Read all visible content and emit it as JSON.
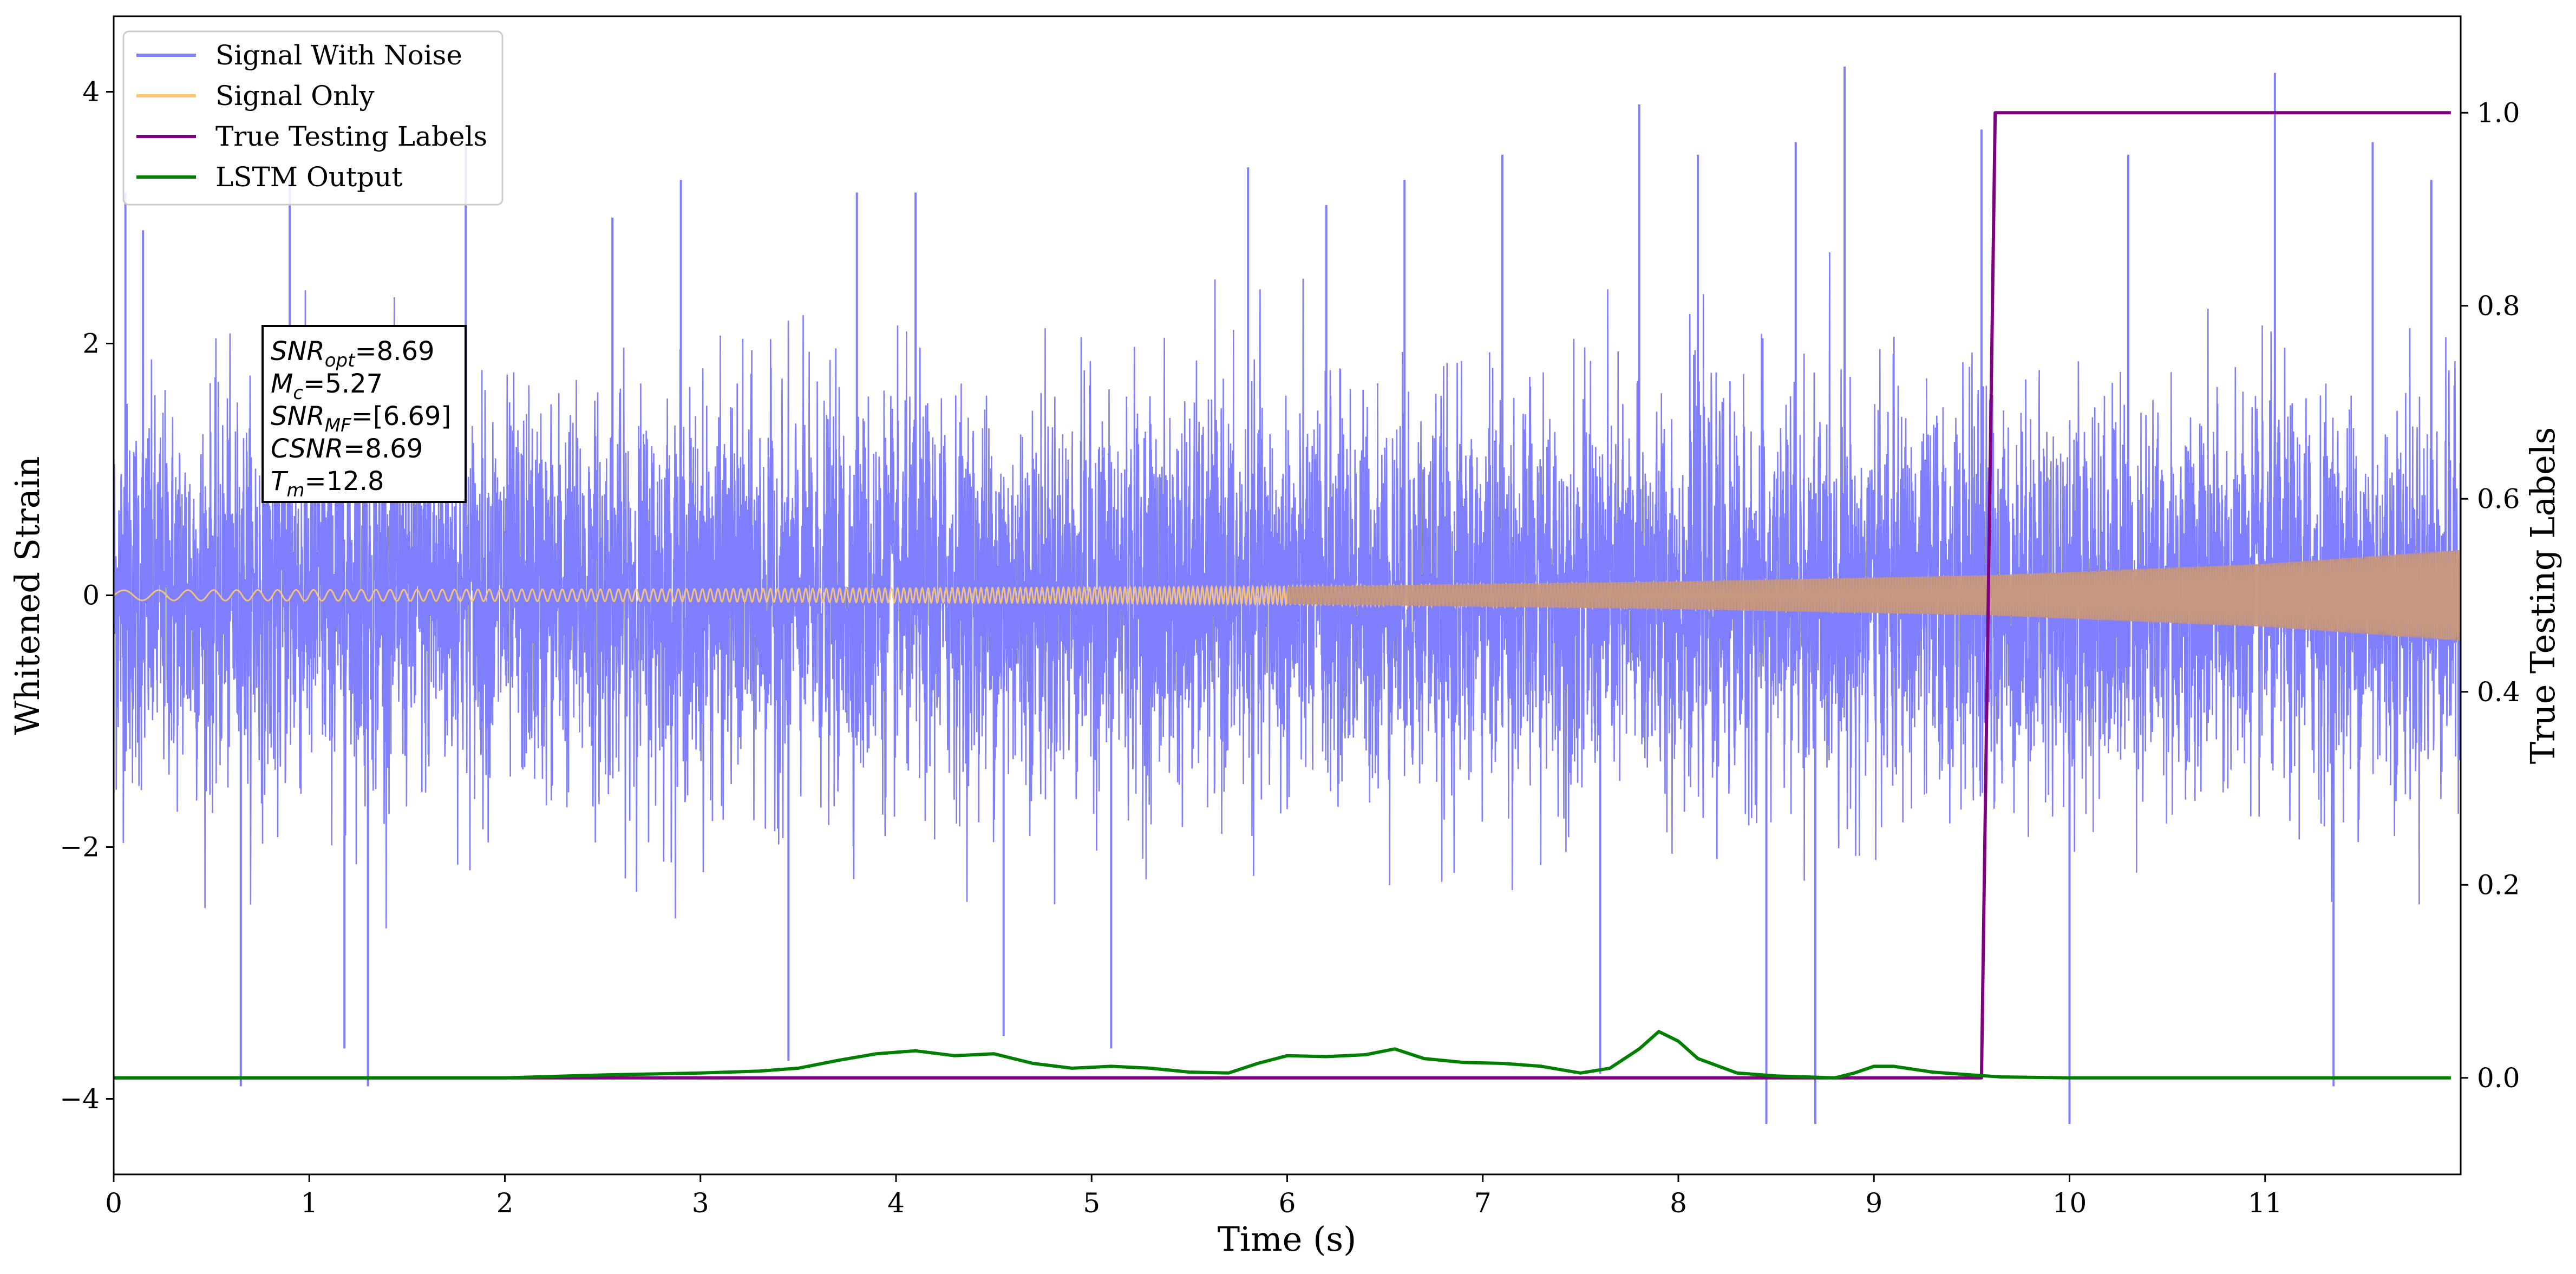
{
  "chart_data": {
    "type": "line",
    "xlabel": "Time (s)",
    "ylabel": "Whitened Strain",
    "ylabel_right": "True Testing Labels",
    "xlim": [
      0,
      12
    ],
    "ylim": [
      -4.6,
      4.6
    ],
    "ylim_right": [
      -0.1,
      1.1
    ],
    "x_ticks": [
      0,
      1,
      2,
      3,
      4,
      5,
      6,
      7,
      8,
      9,
      10,
      11
    ],
    "y_ticks": [
      -4,
      -2,
      0,
      2,
      4
    ],
    "y_ticks_right": [
      0.0,
      0.2,
      0.4,
      0.6,
      0.8,
      1.0
    ],
    "grid": false,
    "legend_position": "top-left",
    "series": [
      {
        "name": "Signal With Noise",
        "color": "#7f7ffe",
        "axis": "left",
        "description_values": {
          "x_range": [
            0,
            12
          ],
          "typical_range": [
            -1.6,
            1.6
          ],
          "spikes": [
            [
              0.06,
              3.2
            ],
            [
              0.15,
              2.9
            ],
            [
              0.65,
              -3.9
            ],
            [
              0.9,
              3.3
            ],
            [
              1.18,
              -3.6
            ],
            [
              1.3,
              -3.9
            ],
            [
              1.8,
              3.6
            ],
            [
              2.55,
              3.0
            ],
            [
              2.9,
              3.3
            ],
            [
              3.45,
              -3.7
            ],
            [
              3.8,
              3.2
            ],
            [
              4.1,
              3.2
            ],
            [
              4.55,
              -3.5
            ],
            [
              5.1,
              -3.6
            ],
            [
              5.8,
              3.4
            ],
            [
              6.2,
              3.1
            ],
            [
              6.6,
              3.3
            ],
            [
              7.1,
              3.5
            ],
            [
              7.6,
              -3.8
            ],
            [
              7.8,
              3.9
            ],
            [
              8.1,
              3.5
            ],
            [
              8.45,
              -4.2
            ],
            [
              8.6,
              3.6
            ],
            [
              8.7,
              -4.2
            ],
            [
              8.85,
              4.2
            ],
            [
              9.55,
              3.7
            ],
            [
              10.0,
              -4.2
            ],
            [
              10.3,
              3.5
            ],
            [
              11.05,
              4.15
            ],
            [
              11.35,
              -3.9
            ],
            [
              11.55,
              3.6
            ],
            [
              11.85,
              3.3
            ]
          ]
        }
      },
      {
        "name": "Signal Only",
        "color": "#ffc870",
        "axis": "left",
        "amplitude_envelope": [
          [
            0,
            0.04
          ],
          [
            3,
            0.05
          ],
          [
            6,
            0.07
          ],
          [
            8,
            0.11
          ],
          [
            9.6,
            0.16
          ],
          [
            11,
            0.25
          ],
          [
            12,
            0.36
          ]
        ]
      },
      {
        "name": "True Testing Labels",
        "color": "#800080",
        "axis": "right",
        "points": [
          [
            0,
            0.0
          ],
          [
            9.55,
            0.0
          ],
          [
            9.62,
            1.0
          ],
          [
            11.95,
            1.0
          ]
        ]
      },
      {
        "name": "LSTM Output",
        "color": "#008000",
        "axis": "right",
        "points": [
          [
            0,
            0.0
          ],
          [
            0.5,
            0.0
          ],
          [
            1.0,
            0.0
          ],
          [
            1.5,
            0.0
          ],
          [
            2.0,
            0.0
          ],
          [
            2.5,
            0.003
          ],
          [
            3.0,
            0.005
          ],
          [
            3.3,
            0.007
          ],
          [
            3.5,
            0.01
          ],
          [
            3.7,
            0.018
          ],
          [
            3.9,
            0.025
          ],
          [
            4.1,
            0.028
          ],
          [
            4.3,
            0.023
          ],
          [
            4.5,
            0.025
          ],
          [
            4.7,
            0.015
          ],
          [
            4.9,
            0.01
          ],
          [
            5.1,
            0.012
          ],
          [
            5.3,
            0.01
          ],
          [
            5.5,
            0.006
          ],
          [
            5.7,
            0.005
          ],
          [
            5.85,
            0.015
          ],
          [
            6.0,
            0.023
          ],
          [
            6.2,
            0.022
          ],
          [
            6.4,
            0.024
          ],
          [
            6.55,
            0.03
          ],
          [
            6.7,
            0.02
          ],
          [
            6.9,
            0.016
          ],
          [
            7.1,
            0.015
          ],
          [
            7.3,
            0.012
          ],
          [
            7.5,
            0.005
          ],
          [
            7.65,
            0.01
          ],
          [
            7.8,
            0.03
          ],
          [
            7.9,
            0.048
          ],
          [
            8.0,
            0.038
          ],
          [
            8.1,
            0.02
          ],
          [
            8.3,
            0.005
          ],
          [
            8.5,
            0.002
          ],
          [
            8.8,
            0.0
          ],
          [
            8.9,
            0.005
          ],
          [
            9.0,
            0.012
          ],
          [
            9.1,
            0.012
          ],
          [
            9.3,
            0.006
          ],
          [
            9.5,
            0.003
          ],
          [
            9.65,
            0.001
          ],
          [
            10.0,
            0.0
          ],
          [
            11.0,
            0.0
          ],
          [
            11.95,
            0.0
          ]
        ]
      }
    ],
    "annotation": {
      "lines": [
        {
          "base": "SNR",
          "sub": "opt",
          "value": "=8.69"
        },
        {
          "base": "M",
          "sub": "c",
          "value": "=5.27"
        },
        {
          "base": "SNR",
          "sub": "MF",
          "value": "=[6.69]"
        },
        {
          "base": "CSNR",
          "sub": "",
          "value": "=8.69"
        },
        {
          "base": "T",
          "sub": "m",
          "value": "=12.8"
        }
      ]
    }
  }
}
